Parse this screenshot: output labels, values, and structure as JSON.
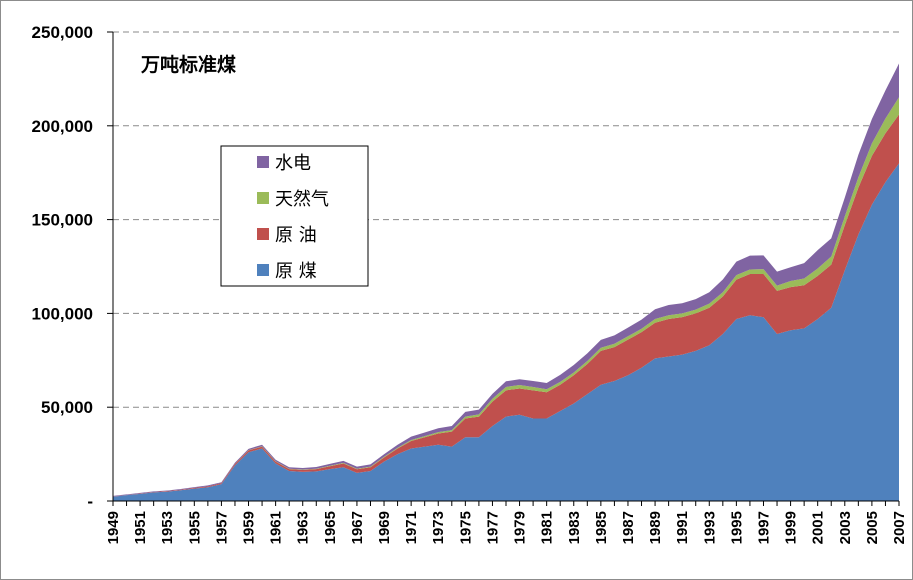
{
  "chart_data": {
    "type": "area",
    "stacked": true,
    "unit_label": "万吨标准煤",
    "ylim": [
      0,
      250000
    ],
    "yticks": [
      0,
      50000,
      100000,
      150000,
      200000,
      250000
    ],
    "ytick_labels": [
      "-",
      "50,000",
      "100,000",
      "150,000",
      "200,000",
      "250,000"
    ],
    "x": [
      1949,
      1950,
      1951,
      1952,
      1953,
      1954,
      1955,
      1956,
      1957,
      1958,
      1959,
      1960,
      1961,
      1962,
      1963,
      1964,
      1965,
      1966,
      1967,
      1968,
      1969,
      1970,
      1971,
      1972,
      1973,
      1974,
      1975,
      1976,
      1977,
      1978,
      1979,
      1980,
      1981,
      1982,
      1983,
      1984,
      1985,
      1986,
      1987,
      1988,
      1989,
      1990,
      1991,
      1992,
      1993,
      1994,
      1995,
      1996,
      1997,
      1998,
      1999,
      2000,
      2001,
      2002,
      2003,
      2004,
      2005,
      2006,
      2007
    ],
    "xtick_labels": [
      "1949",
      "1951",
      "1953",
      "1955",
      "1957",
      "1959",
      "1961",
      "1963",
      "1965",
      "1967",
      "1969",
      "1971",
      "1973",
      "1975",
      "1977",
      "1979",
      "1981",
      "1983",
      "1985",
      "1987",
      "1989",
      "1991",
      "1993",
      "1995",
      "1997",
      "1999",
      "2001",
      "2003",
      "2005",
      "2007"
    ],
    "grid": "horizontal-dashed",
    "legend_position": "upper-left",
    "series": [
      {
        "name": "原 煤",
        "color": "#4f81bd",
        "values": [
          2300,
          3100,
          3800,
          4600,
          5000,
          5700,
          6600,
          7300,
          9000,
          19000,
          26000,
          28000,
          20000,
          16000,
          15500,
          15800,
          17000,
          18000,
          15000,
          16000,
          21000,
          25000,
          28000,
          29000,
          30000,
          29000,
          34000,
          34000,
          40000,
          45000,
          46000,
          44000,
          44000,
          48000,
          52000,
          57000,
          62000,
          64000,
          67000,
          71000,
          76000,
          77000,
          78000,
          80000,
          83000,
          89000,
          97000,
          99000,
          98000,
          89000,
          91000,
          92000,
          97000,
          103000,
          123000,
          142000,
          158000,
          170000,
          180000
        ]
      },
      {
        "name": "原 油",
        "color": "#c0504d",
        "values": [
          100,
          100,
          200,
          200,
          300,
          300,
          400,
          500,
          500,
          800,
          1000,
          1000,
          1000,
          1000,
          1100,
          1200,
          1500,
          2000,
          1900,
          2000,
          2200,
          3000,
          4000,
          5000,
          6000,
          8000,
          10000,
          11000,
          13000,
          14000,
          14000,
          15000,
          14000,
          14000,
          15000,
          16000,
          18000,
          18000,
          19000,
          19000,
          19000,
          20000,
          20000,
          20000,
          20000,
          20000,
          21000,
          22000,
          23000,
          23000,
          23000,
          23000,
          23000,
          23000,
          24000,
          25000,
          26000,
          26000,
          26000
        ]
      },
      {
        "name": "天然气",
        "color": "#9bbb59",
        "values": [
          0,
          0,
          0,
          0,
          0,
          0,
          0,
          0,
          0,
          50,
          100,
          200,
          200,
          200,
          200,
          200,
          300,
          300,
          300,
          300,
          400,
          400,
          500,
          600,
          700,
          800,
          1000,
          1200,
          1500,
          1800,
          1800,
          1800,
          1600,
          1500,
          1500,
          1600,
          1700,
          1800,
          1800,
          1800,
          2000,
          2000,
          2000,
          2000,
          2200,
          2300,
          2400,
          2400,
          2600,
          2800,
          3300,
          3600,
          3900,
          4300,
          4700,
          5500,
          6600,
          7900,
          9200
        ]
      },
      {
        "name": "水电",
        "color": "#8064a2",
        "values": [
          300,
          300,
          300,
          300,
          300,
          400,
          400,
          500,
          500,
          600,
          700,
          800,
          800,
          800,
          800,
          900,
          1000,
          1100,
          1100,
          1200,
          1300,
          1600,
          1800,
          1900,
          2100,
          2200,
          2500,
          2500,
          2600,
          3000,
          3100,
          3200,
          3300,
          3700,
          4000,
          4100,
          4200,
          4500,
          4600,
          4900,
          5200,
          5500,
          5400,
          5600,
          6100,
          6800,
          7200,
          7400,
          7300,
          7500,
          7300,
          8200,
          9800,
          9700,
          10000,
          12000,
          13000,
          15000,
          18000
        ]
      }
    ],
    "legend_order": [
      "水电",
      "天然气",
      "原 油",
      "原 煤"
    ]
  }
}
